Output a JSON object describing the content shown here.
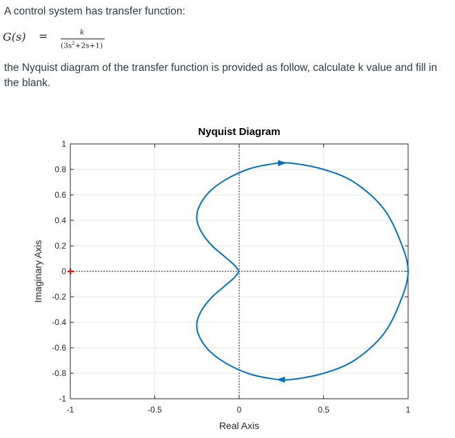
{
  "question": {
    "intro": "A control system has transfer function:",
    "formula": {
      "lhs": "G(s)",
      "equals": "=",
      "numerator": "k",
      "denominator_parts": [
        "(3s",
        "2",
        "+2s+1)"
      ]
    },
    "body": "the Nyquist diagram of the transfer function is provided as follow, calculate k value and fill in the blank."
  },
  "chart_data": {
    "type": "line",
    "title": "Nyquist Diagram",
    "xlabel": "Real Axis",
    "ylabel": "Imaginary Axis",
    "xlim": [
      -1,
      1
    ],
    "ylim": [
      -1,
      1
    ],
    "grid": true,
    "x_ticks": [
      -1,
      -0.5,
      0,
      0.5,
      1
    ],
    "x_tick_labels": [
      "-1",
      "-0.5",
      "0",
      "0.5",
      "1"
    ],
    "y_ticks": [
      1,
      0.8,
      0.6,
      0.4,
      0.2,
      0,
      -0.2,
      -0.4,
      -0.6,
      -0.8,
      -1
    ],
    "y_tick_labels": [
      "1",
      "0.8",
      "0.6",
      "0.4",
      "0.2",
      "0",
      "-0.2",
      "-0.4",
      "-0.6",
      "-0.8",
      "-1"
    ],
    "critical_point": [
      -1,
      0
    ],
    "series": [
      {
        "color": "#0072bd",
        "points": [
          [
            0,
            0
          ],
          [
            -0.03,
            0.05
          ],
          [
            -0.09,
            0.12
          ],
          [
            -0.16,
            0.2
          ],
          [
            -0.22,
            0.3
          ],
          [
            -0.25,
            0.4
          ],
          [
            -0.24,
            0.5
          ],
          [
            -0.18,
            0.62
          ],
          [
            -0.08,
            0.72
          ],
          [
            0.05,
            0.8
          ],
          [
            0.18,
            0.84
          ],
          [
            0.3,
            0.85
          ],
          [
            0.5,
            0.8
          ],
          [
            0.68,
            0.7
          ],
          [
            0.85,
            0.5
          ],
          [
            0.95,
            0.25
          ],
          [
            1,
            0
          ],
          [
            0.95,
            -0.25
          ],
          [
            0.85,
            -0.5
          ],
          [
            0.68,
            -0.7
          ],
          [
            0.5,
            -0.8
          ],
          [
            0.3,
            -0.85
          ],
          [
            0.18,
            -0.84
          ],
          [
            0.05,
            -0.8
          ],
          [
            -0.08,
            -0.72
          ],
          [
            -0.18,
            -0.62
          ],
          [
            -0.24,
            -0.5
          ],
          [
            -0.25,
            -0.4
          ],
          [
            -0.22,
            -0.3
          ],
          [
            -0.16,
            -0.2
          ],
          [
            -0.09,
            -0.12
          ],
          [
            -0.03,
            -0.05
          ],
          [
            0,
            0
          ]
        ],
        "arrows": [
          [
            0.25,
            0.85
          ],
          [
            0.25,
            -0.85
          ]
        ]
      }
    ]
  }
}
